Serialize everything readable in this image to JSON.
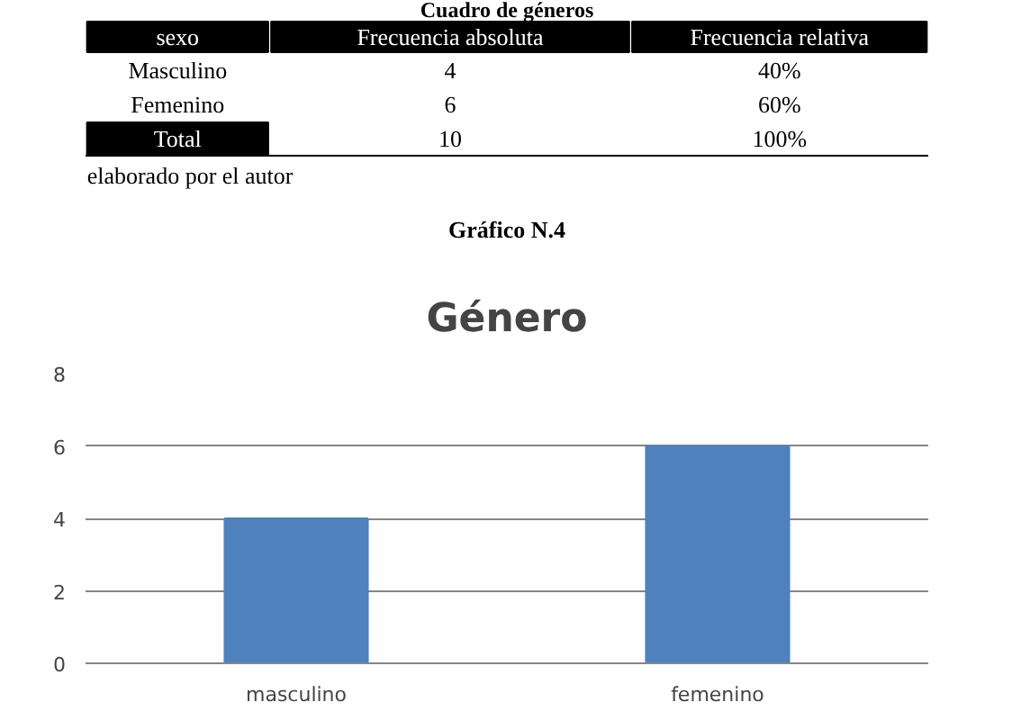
{
  "chart_data": {
    "type": "bar",
    "title": "Género",
    "categories": [
      "masculino",
      "femenino"
    ],
    "values": [
      4,
      6
    ],
    "color": "#4f81bd",
    "ylim": [
      0,
      8
    ],
    "yticks": [
      0,
      2,
      4,
      6,
      8
    ],
    "grid": "y",
    "annotations": [
      "Cuadro de géneros",
      "sexo",
      "Frecuencia absoluta",
      "Frecuencia relativa",
      "Masculino",
      "4",
      "40%",
      "Femenino",
      "6",
      "60%",
      "Total",
      "10",
      "100%",
      "elaborado por el autor",
      "Gráfico N.4"
    ]
  }
}
